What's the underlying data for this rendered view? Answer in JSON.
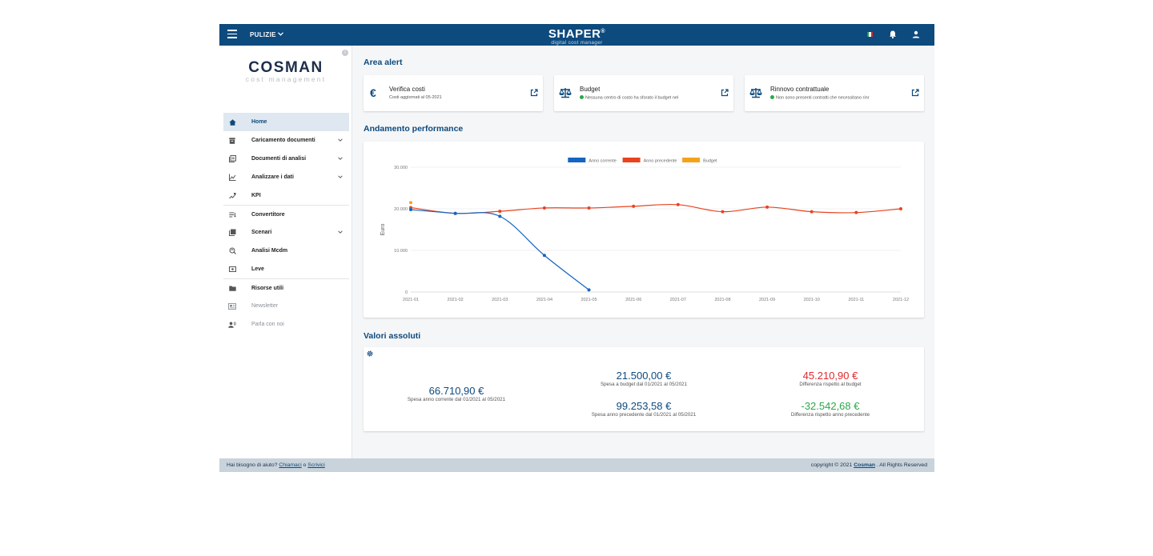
{
  "topbar": {
    "menu_label": "PULIZIE",
    "brand_title": "SHAPER",
    "brand_reg": "®",
    "brand_subtitle": "digital cost manager"
  },
  "sidebar": {
    "logo_title": "COSMAN",
    "logo_subtitle": "cost management",
    "items": [
      {
        "label": "Home",
        "icon": "home-icon",
        "active": true
      },
      {
        "label": "Caricamento documenti",
        "icon": "archive-icon",
        "expandable": true
      },
      {
        "label": "Documenti di analisi",
        "icon": "documents-icon",
        "expandable": true
      },
      {
        "label": "Analizzare i dati",
        "icon": "chart-icon",
        "expandable": true
      },
      {
        "label": "KPI",
        "icon": "kpi-icon"
      },
      {
        "label": "Convertitore",
        "icon": "converter-icon"
      },
      {
        "label": "Scenari",
        "icon": "scenarios-icon",
        "expandable": true
      },
      {
        "label": "Analisi Mcdm",
        "icon": "mcdm-icon"
      },
      {
        "label": "Leve",
        "icon": "levers-icon"
      },
      {
        "label": "Risorse utili",
        "icon": "folder-icon"
      },
      {
        "label": "Newsletter",
        "icon": "newsletter-icon",
        "dim": true
      },
      {
        "label": "Parla con noi",
        "icon": "voice-icon",
        "dim": true
      }
    ]
  },
  "alerts": {
    "title": "Area alert",
    "cards": [
      {
        "icon": "euro-icon",
        "symbol": "€",
        "title": "Verifica costi",
        "subtitle": "Costi aggiornati al 05-2021"
      },
      {
        "icon": "balance-icon",
        "title": "Budget",
        "subtitle": "Nessuna centro di costo ha sforato il budget nel"
      },
      {
        "icon": "balance-icon",
        "title": "Rinnovo contrattuale",
        "subtitle": "Non sono presenti contratti che necessitano rinr"
      }
    ]
  },
  "performance": {
    "title": "Andamento performance"
  },
  "chart_data": {
    "type": "line",
    "title": "",
    "ylabel": "Euro",
    "xlabel": "",
    "x": [
      "2021-01",
      "2021-02",
      "2021-03",
      "2021-04",
      "2021-05",
      "2021-06",
      "2021-07",
      "2021-08",
      "2021-09",
      "2021-10",
      "2021-11",
      "2021-12"
    ],
    "y_ticks": [
      "0",
      "10.000",
      "20.000",
      "30.000"
    ],
    "ylim": [
      0,
      30000
    ],
    "grid": true,
    "legend_position": "top",
    "series": [
      {
        "name": "Anno corrente",
        "color": "#1565c0",
        "values": [
          19800,
          18900,
          18200,
          8800,
          500,
          null,
          null,
          null,
          null,
          null,
          null,
          null
        ]
      },
      {
        "name": "Anno precedente",
        "color": "#e8431f",
        "values": [
          20300,
          18900,
          19400,
          20200,
          20200,
          20600,
          21000,
          19300,
          20400,
          19300,
          19100,
          20000
        ]
      },
      {
        "name": "Budget",
        "color": "#f5a21b",
        "values": [
          21500,
          null,
          null,
          null,
          null,
          null,
          null,
          null,
          null,
          null,
          null,
          null
        ]
      }
    ]
  },
  "absolute": {
    "title": "Valori assoluti",
    "current": {
      "value": "66.710,90 €",
      "label": "Spesa anno corrente dal 01/2021 al 05/2021"
    },
    "budget": {
      "value": "21.500,00 €",
      "label": "Spesa a budget dal 01/2021 al 05/2021"
    },
    "previous": {
      "value": "99.253,58 €",
      "label": "Spesa anno precedente dal 01/2021 al 05/2021"
    },
    "diff_budget": {
      "value": "45.210,90 €",
      "label": "Differenza rispetto al budget",
      "color": "#e0282e"
    },
    "diff_previous": {
      "value": "-32.542,68 €",
      "label": "Differenza rispetto anno precedente",
      "color": "#2aa84a"
    }
  },
  "footer": {
    "help_text": "Hai bisogno di aiuto?",
    "call_link": "Chiamaci",
    "or_text": "o",
    "write_link": "Scrivici",
    "copyright_prefix": "copyright © 2021",
    "company": "Cosman",
    "copyright_suffix": ". All Rights Reserved"
  },
  "colors": {
    "brand": "#0d4a7e",
    "positive": "#2aa84a",
    "negative": "#e0282e"
  }
}
